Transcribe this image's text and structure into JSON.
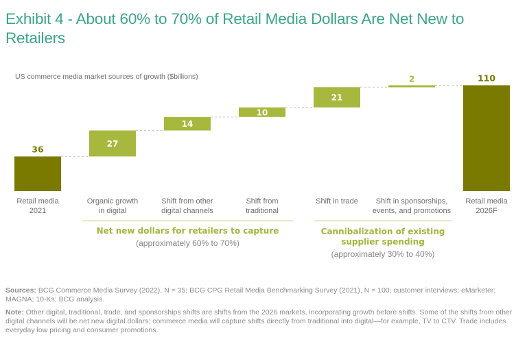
{
  "header": {
    "title": "Exhibit 4 - About 60% to 70% of Retail Media Dollars Are Net New to Retailers"
  },
  "chart_data": {
    "type": "bar",
    "subtype": "waterfall",
    "title": "Exhibit 4 - About 60% to 70% of Retail Media Dollars Are Net New to Retailers",
    "subtitle": "US commerce media market sources of growth ($billions)",
    "xlabel": "",
    "ylabel": "",
    "grid": false,
    "legend": "none",
    "ylim": [
      0,
      115
    ],
    "categories": [
      [
        "Retail media",
        "2021"
      ],
      [
        "Organic growth",
        "in digital"
      ],
      [
        "Shift from other",
        "digital channels"
      ],
      [
        "Shift from",
        "traditional"
      ],
      [
        "Shift in trade"
      ],
      [
        "Shift in sponsorships,",
        "events, and promotions"
      ],
      [
        "Retail media",
        "2026F"
      ]
    ],
    "values": [
      36,
      27,
      14,
      10,
      21,
      2,
      110
    ],
    "bar_kinds": [
      "total",
      "increment",
      "increment",
      "increment",
      "increment",
      "increment",
      "total"
    ],
    "colors": {
      "total": "#7a7a00",
      "increment": "#a8b83e",
      "connector": "#c8c8c8"
    },
    "groups": [
      {
        "title": "Net new dollars for retailers to capture",
        "subtitle": "(approximately 60% to 70%)",
        "categories": [
          "Organic growth in digital",
          "Shift from other digital channels",
          "Shift from traditional"
        ]
      },
      {
        "title": "Cannibalization of existing supplier spending",
        "subtitle": "(approximately 30% to 40%)",
        "categories": [
          "Shift in trade",
          "Shift in sponsorships, events, and promotions"
        ]
      }
    ]
  },
  "groups": {
    "net_new": {
      "title": "Net new dollars for retailers to capture",
      "subtitle": "(approximately 60% to 70%)"
    },
    "cannibalization": {
      "title_line1": "Cannibalization of existing",
      "title_line2": "supplier spending",
      "subtitle": "(approximately 30% to 40%)"
    }
  },
  "notes": {
    "sources_label": "Sources:",
    "sources_text": " BCG Commerce Media Survey (2022), N = 35; BCG CPG Retail Media Benchmarking Survey (2021), N = 100; customer interviews; eMarketer; MAGNA; 10-Ks; BCG analysis.",
    "note_label": "Note:",
    "note_text": " Other digital, traditional, trade, and sponsorships shifts are shifts from the 2026 markets, incorporating growth before shifts. Some of the shifts from other digital channels will be net new digital dollars; commerce media will capture shifts directly from traditional into digital—for example, TV to CTV. Trade includes everyday low pricing and consumer promotions."
  }
}
